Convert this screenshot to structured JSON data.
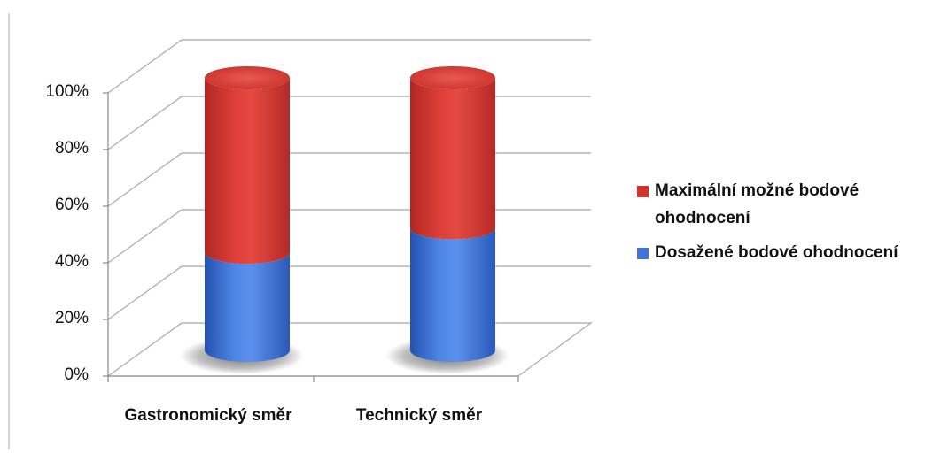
{
  "chart_data": {
    "type": "bar",
    "stacked": true,
    "stack_mode": "percent",
    "style": "3d-cylinder",
    "categories": [
      "Gastronomický směr",
      "Technický směr"
    ],
    "series": [
      {
        "name": "Dosažené bodové ohodnocení",
        "values": [
          36,
          45
        ],
        "color": "#3f74d6"
      },
      {
        "name": "Maximální možné bodové ohodnocení",
        "values": [
          64,
          55
        ],
        "color": "#d2352f"
      }
    ],
    "y_ticks": [
      "0%",
      "20%",
      "40%",
      "60%",
      "80%",
      "100%"
    ],
    "ylim": [
      0,
      100
    ],
    "grid": true,
    "legend_position": "right",
    "title": "",
    "xlabel": "",
    "ylabel": ""
  },
  "legend": [
    {
      "label": "Maximální možné bodové ohodnocení",
      "color": "#d2352f"
    },
    {
      "label": "Dosažené bodové ohodnocení",
      "color": "#3f74d6"
    }
  ]
}
